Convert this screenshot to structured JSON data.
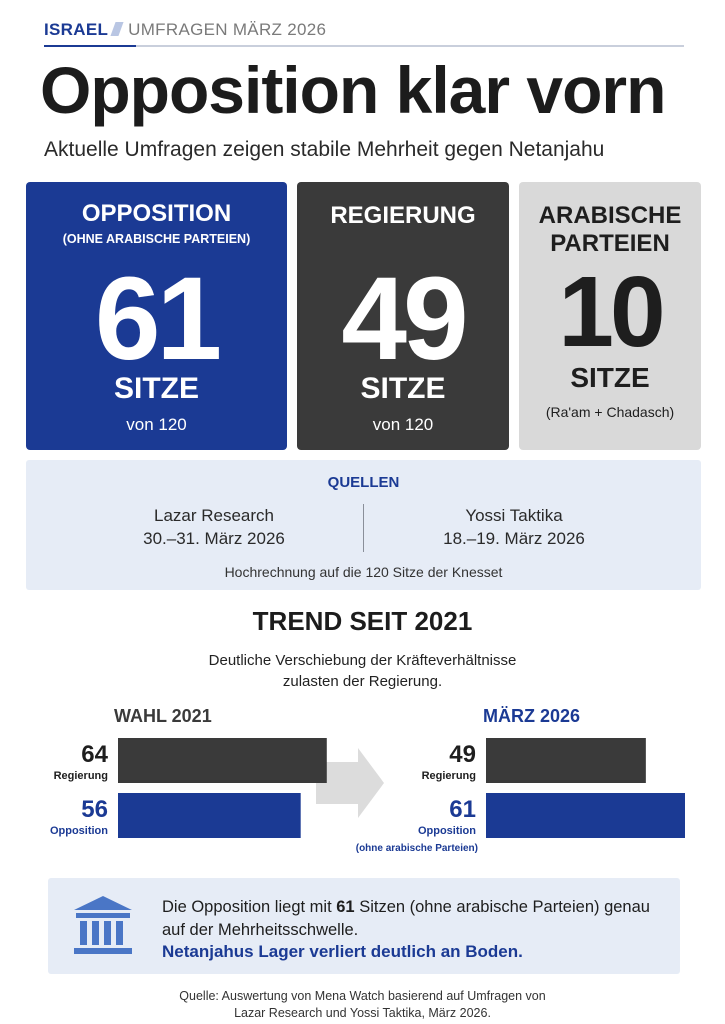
{
  "header": {
    "kicker_primary": "ISRAEL",
    "kicker_secondary": "UMFRAGEN MÄRZ 2026",
    "title": "Opposition klar vorn",
    "subtitle": "Aktuelle Umfragen zeigen stabile Mehrheit gegen Netanjahu"
  },
  "cards": [
    {
      "title": "OPPOSITION",
      "note": "(OHNE ARABISCHE PARTEIEN)",
      "value": "61",
      "unit": "SITZE",
      "sub": "von 120",
      "color": "#1b3a94"
    },
    {
      "title": "REGIERUNG",
      "note": "",
      "value": "49",
      "unit": "SITZE",
      "sub": "von 120",
      "color": "#3a3a3a"
    },
    {
      "title_line1": "ARABISCHE",
      "title_line2": "PARTEIEN",
      "value": "10",
      "unit": "SITZE",
      "sub": "(Ra'am + Chadasch)",
      "color": "#d9d9d9"
    }
  ],
  "sources": {
    "label": "QUELLEN",
    "items": [
      {
        "name": "Lazar Research",
        "date": "30.–31. März 2026"
      },
      {
        "name": "Yossi Taktika",
        "date": "18.–19. März 2026"
      }
    ],
    "footnote": "Hochrechnung auf die 120 Sitze der Knesset"
  },
  "trend": {
    "title": "TREND SEIT 2021",
    "subtitle_line1": "Deutliche Verschiebung der Kräfteverhältnisse",
    "subtitle_line2": "zulasten der Regierung."
  },
  "chart_data": {
    "type": "bar",
    "orientation": "horizontal",
    "groups": [
      {
        "label": "WAHL 2021",
        "bars": [
          {
            "name": "Regierung",
            "value": 64,
            "color": "#3a3a3a"
          },
          {
            "name": "Opposition",
            "value": 56,
            "color": "#1b3a94"
          }
        ]
      },
      {
        "label": "MÄRZ 2026",
        "bars": [
          {
            "name": "Regierung",
            "value": 49,
            "color": "#3a3a3a"
          },
          {
            "name": "Opposition",
            "value": 61,
            "note": "(ohne arabische Parteien)",
            "color": "#1b3a94"
          }
        ]
      }
    ]
  },
  "callout": {
    "text_before": "Die Opposition liegt mit ",
    "text_bold": "61",
    "text_after": " Sitzen (ohne arabische Parteien) genau auf der Mehrheitsschwelle.",
    "highlight": "Netanjahus Lager verliert deutlich an Boden.",
    "icon": "parliament-building-icon"
  },
  "source_line1": "Quelle: Auswertung von Mena Watch basierend auf Umfragen von",
  "source_line2": "Lazar Research und Yossi Taktika, März 2026."
}
